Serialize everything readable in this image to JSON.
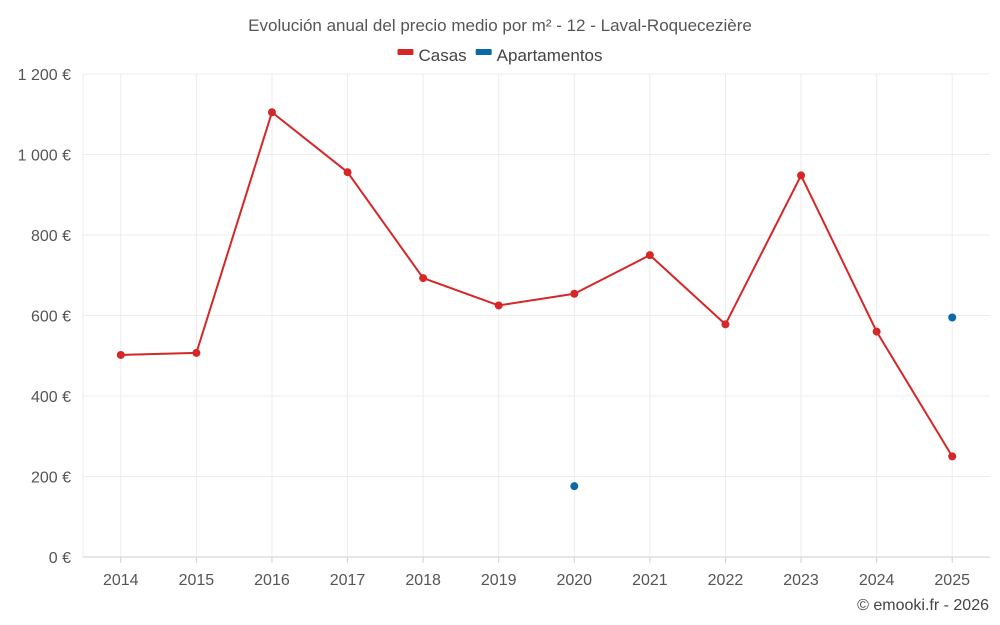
{
  "chart_data": {
    "type": "line",
    "title": "Evolución anual del precio medio por m² - 12 - Laval-Roquecezière",
    "categories": [
      "2014",
      "2015",
      "2016",
      "2017",
      "2018",
      "2019",
      "2020",
      "2021",
      "2022",
      "2023",
      "2024",
      "2025"
    ],
    "series": [
      {
        "name": "Casas",
        "color": "#d62728",
        "values": [
          502,
          507,
          1105,
          956,
          693,
          625,
          654,
          750,
          578,
          948,
          560,
          250
        ]
      },
      {
        "name": "Apartamentos",
        "color": "#0a6aa6",
        "values": [
          null,
          null,
          null,
          null,
          null,
          null,
          176,
          null,
          null,
          null,
          null,
          595
        ]
      }
    ],
    "ylim": [
      0,
      1200
    ],
    "yticks": [
      0,
      200,
      400,
      600,
      800,
      1000,
      1200
    ],
    "ytick_labels": [
      "0 €",
      "200 €",
      "400 €",
      "600 €",
      "800 €",
      "1 000 €",
      "1 200 €"
    ],
    "xlabel": "",
    "ylabel": "",
    "legend_position": "top-center",
    "grid": true
  },
  "credit": "© emooki.fr - 2026"
}
